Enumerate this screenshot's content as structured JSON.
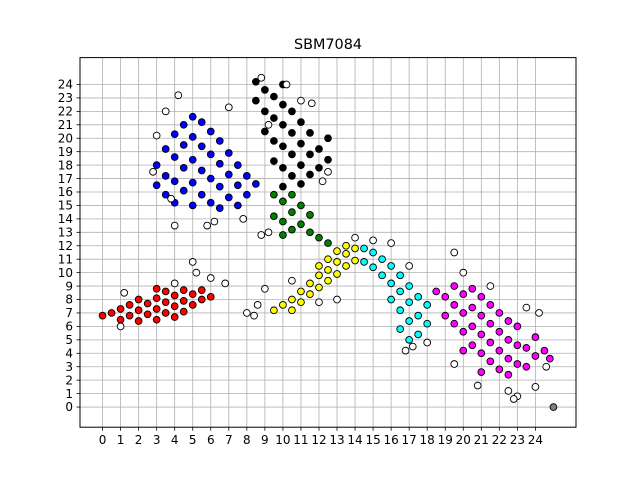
{
  "chart_data": {
    "type": "scatter",
    "title": "SBM7084",
    "xlabel": "",
    "ylabel": "",
    "xlim": [
      -1.25,
      26.25
    ],
    "ylim": [
      -1.5,
      26.0
    ],
    "x_ticks": [
      0,
      1,
      2,
      3,
      4,
      5,
      6,
      7,
      8,
      9,
      10,
      11,
      12,
      13,
      14,
      15,
      16,
      17,
      18,
      19,
      20,
      21,
      22,
      23,
      24
    ],
    "y_ticks": [
      0,
      1,
      2,
      3,
      4,
      5,
      6,
      7,
      8,
      9,
      10,
      11,
      12,
      13,
      14,
      15,
      16,
      17,
      18,
      19,
      20,
      21,
      22,
      23,
      24
    ],
    "grid": true,
    "legend": "none",
    "marker": "circle, black edge",
    "clusters": [
      {
        "color": "#ff0000",
        "points": [
          [
            0.0,
            6.8
          ],
          [
            0.5,
            7.0
          ],
          [
            1.0,
            6.5
          ],
          [
            1.0,
            7.3
          ],
          [
            1.5,
            6.8
          ],
          [
            1.5,
            7.6
          ],
          [
            2.0,
            6.4
          ],
          [
            2.0,
            7.2
          ],
          [
            2.0,
            8.0
          ],
          [
            2.5,
            6.9
          ],
          [
            2.5,
            7.7
          ],
          [
            3.0,
            6.5
          ],
          [
            3.0,
            7.3
          ],
          [
            3.0,
            8.1
          ],
          [
            3.0,
            8.8
          ],
          [
            3.5,
            7.0
          ],
          [
            3.5,
            7.8
          ],
          [
            3.5,
            8.6
          ],
          [
            4.0,
            6.7
          ],
          [
            4.0,
            7.5
          ],
          [
            4.0,
            8.3
          ],
          [
            4.5,
            7.1
          ],
          [
            4.5,
            7.9
          ],
          [
            4.5,
            8.7
          ],
          [
            5.0,
            7.6
          ],
          [
            5.0,
            8.4
          ],
          [
            5.5,
            8.0
          ],
          [
            5.5,
            8.7
          ],
          [
            6.0,
            8.2
          ]
        ]
      },
      {
        "color": "#0000ff",
        "points": [
          [
            3.0,
            18.0
          ],
          [
            3.0,
            16.5
          ],
          [
            3.5,
            19.2
          ],
          [
            3.5,
            17.2
          ],
          [
            3.5,
            15.8
          ],
          [
            4.0,
            20.3
          ],
          [
            4.0,
            18.6
          ],
          [
            4.0,
            16.8
          ],
          [
            4.0,
            15.2
          ],
          [
            4.5,
            21.0
          ],
          [
            4.5,
            19.5
          ],
          [
            4.5,
            17.8
          ],
          [
            4.5,
            16.1
          ],
          [
            5.0,
            21.6
          ],
          [
            5.0,
            20.1
          ],
          [
            5.0,
            18.4
          ],
          [
            5.0,
            16.7
          ],
          [
            5.0,
            15.0
          ],
          [
            5.5,
            21.2
          ],
          [
            5.5,
            19.4
          ],
          [
            5.5,
            17.6
          ],
          [
            5.5,
            15.8
          ],
          [
            6.0,
            20.5
          ],
          [
            6.0,
            18.8
          ],
          [
            6.0,
            17.0
          ],
          [
            6.0,
            15.2
          ],
          [
            6.5,
            19.8
          ],
          [
            6.5,
            18.1
          ],
          [
            6.5,
            16.4
          ],
          [
            6.5,
            14.8
          ],
          [
            7.0,
            18.9
          ],
          [
            7.0,
            17.3
          ],
          [
            7.0,
            15.6
          ],
          [
            7.5,
            18.0
          ],
          [
            7.5,
            16.5
          ],
          [
            7.5,
            15.0
          ],
          [
            8.0,
            17.2
          ],
          [
            8.0,
            15.8
          ],
          [
            8.5,
            16.6
          ]
        ]
      },
      {
        "color": "#000000",
        "points": [
          [
            8.5,
            24.2
          ],
          [
            8.5,
            22.8
          ],
          [
            9.0,
            23.6
          ],
          [
            9.0,
            22.0
          ],
          [
            9.0,
            20.5
          ],
          [
            9.5,
            23.1
          ],
          [
            9.5,
            21.5
          ],
          [
            9.5,
            19.8
          ],
          [
            9.5,
            18.3
          ],
          [
            10.0,
            24.0
          ],
          [
            10.0,
            22.5
          ],
          [
            10.0,
            21.0
          ],
          [
            10.0,
            19.4
          ],
          [
            10.0,
            17.8
          ],
          [
            10.0,
            16.4
          ],
          [
            10.5,
            22.0
          ],
          [
            10.5,
            20.4
          ],
          [
            10.5,
            18.8
          ],
          [
            10.5,
            17.2
          ],
          [
            11.0,
            21.2
          ],
          [
            11.0,
            19.6
          ],
          [
            11.0,
            18.0
          ],
          [
            11.0,
            16.6
          ],
          [
            11.5,
            20.4
          ],
          [
            11.5,
            18.8
          ],
          [
            11.5,
            17.3
          ],
          [
            12.0,
            19.2
          ],
          [
            12.0,
            17.8
          ],
          [
            12.5,
            20.0
          ],
          [
            12.5,
            18.4
          ]
        ]
      },
      {
        "color": "#008000",
        "points": [
          [
            9.5,
            15.8
          ],
          [
            9.5,
            14.2
          ],
          [
            10.0,
            15.3
          ],
          [
            10.0,
            13.8
          ],
          [
            10.0,
            12.8
          ],
          [
            10.5,
            15.8
          ],
          [
            10.5,
            14.5
          ],
          [
            10.5,
            13.2
          ],
          [
            11.0,
            15.0
          ],
          [
            11.0,
            13.6
          ],
          [
            11.5,
            14.3
          ],
          [
            11.5,
            13.0
          ],
          [
            12.0,
            12.6
          ],
          [
            12.5,
            12.2
          ]
        ]
      },
      {
        "color": "#ffff00",
        "points": [
          [
            9.5,
            7.2
          ],
          [
            10.0,
            7.6
          ],
          [
            10.5,
            8.0
          ],
          [
            10.5,
            7.2
          ],
          [
            11.0,
            8.6
          ],
          [
            11.0,
            7.8
          ],
          [
            11.5,
            9.2
          ],
          [
            11.5,
            8.4
          ],
          [
            12.0,
            9.8
          ],
          [
            12.0,
            8.9
          ],
          [
            12.0,
            10.5
          ],
          [
            12.5,
            10.2
          ],
          [
            12.5,
            9.4
          ],
          [
            12.5,
            11.0
          ],
          [
            13.0,
            10.8
          ],
          [
            13.0,
            9.9
          ],
          [
            13.0,
            11.6
          ],
          [
            13.5,
            11.4
          ],
          [
            13.5,
            10.5
          ],
          [
            13.5,
            12.0
          ],
          [
            14.0,
            11.8
          ],
          [
            14.0,
            10.9
          ]
        ]
      },
      {
        "color": "#00ffff",
        "points": [
          [
            14.5,
            11.8
          ],
          [
            14.5,
            10.8
          ],
          [
            15.0,
            11.5
          ],
          [
            15.0,
            10.4
          ],
          [
            15.5,
            11.0
          ],
          [
            15.5,
            9.8
          ],
          [
            16.0,
            10.5
          ],
          [
            16.0,
            9.2
          ],
          [
            16.0,
            8.0
          ],
          [
            16.5,
            9.8
          ],
          [
            16.5,
            8.6
          ],
          [
            16.5,
            7.2
          ],
          [
            16.5,
            5.8
          ],
          [
            17.0,
            9.0
          ],
          [
            17.0,
            7.8
          ],
          [
            17.0,
            6.4
          ],
          [
            17.0,
            5.0
          ],
          [
            17.5,
            8.2
          ],
          [
            17.5,
            6.8
          ],
          [
            17.5,
            5.4
          ],
          [
            18.0,
            7.6
          ],
          [
            18.0,
            6.2
          ]
        ]
      },
      {
        "color": "#ff00ff",
        "points": [
          [
            18.5,
            8.6
          ],
          [
            19.0,
            8.2
          ],
          [
            19.0,
            6.8
          ],
          [
            19.5,
            9.0
          ],
          [
            19.5,
            7.6
          ],
          [
            19.5,
            6.2
          ],
          [
            20.0,
            8.4
          ],
          [
            20.0,
            7.0
          ],
          [
            20.0,
            5.6
          ],
          [
            20.0,
            4.2
          ],
          [
            20.5,
            8.8
          ],
          [
            20.5,
            7.4
          ],
          [
            20.5,
            6.0
          ],
          [
            20.5,
            4.6
          ],
          [
            21.0,
            8.2
          ],
          [
            21.0,
            6.8
          ],
          [
            21.0,
            5.4
          ],
          [
            21.0,
            4.0
          ],
          [
            21.0,
            2.6
          ],
          [
            21.5,
            7.6
          ],
          [
            21.5,
            6.2
          ],
          [
            21.5,
            4.8
          ],
          [
            21.5,
            3.4
          ],
          [
            22.0,
            7.0
          ],
          [
            22.0,
            5.6
          ],
          [
            22.0,
            4.2
          ],
          [
            22.0,
            2.8
          ],
          [
            22.5,
            6.4
          ],
          [
            22.5,
            5.0
          ],
          [
            22.5,
            3.6
          ],
          [
            22.5,
            2.4
          ],
          [
            23.0,
            6.0
          ],
          [
            23.0,
            4.6
          ],
          [
            23.0,
            3.2
          ],
          [
            23.5,
            4.4
          ],
          [
            23.5,
            3.0
          ],
          [
            24.0,
            5.2
          ],
          [
            24.0,
            3.8
          ],
          [
            24.5,
            4.2
          ],
          [
            24.8,
            3.6
          ]
        ]
      },
      {
        "color": "#ffffff",
        "points": [
          [
            1.0,
            6.0
          ],
          [
            1.2,
            8.5
          ],
          [
            5.0,
            10.8
          ],
          [
            5.2,
            10.0
          ],
          [
            6.0,
            9.6
          ],
          [
            6.8,
            9.2
          ],
          [
            4.0,
            9.2
          ],
          [
            3.5,
            22.0
          ],
          [
            4.2,
            23.2
          ],
          [
            3.8,
            15.5
          ],
          [
            4.0,
            13.5
          ],
          [
            3.0,
            20.2
          ],
          [
            2.8,
            17.5
          ],
          [
            7.0,
            22.3
          ],
          [
            5.8,
            13.5
          ],
          [
            6.2,
            13.8
          ],
          [
            7.8,
            14.0
          ],
          [
            9.2,
            13.0
          ],
          [
            8.8,
            12.8
          ],
          [
            8.8,
            24.5
          ],
          [
            9.2,
            21.0
          ],
          [
            10.2,
            24.0
          ],
          [
            11.0,
            22.8
          ],
          [
            11.6,
            22.6
          ],
          [
            12.2,
            16.8
          ],
          [
            12.5,
            17.5
          ],
          [
            8.6,
            7.6
          ],
          [
            9.0,
            8.8
          ],
          [
            10.5,
            9.4
          ],
          [
            8.0,
            7.0
          ],
          [
            8.4,
            6.8
          ],
          [
            12.0,
            7.8
          ],
          [
            13.0,
            8.0
          ],
          [
            14.0,
            12.6
          ],
          [
            15.0,
            12.4
          ],
          [
            16.0,
            12.2
          ],
          [
            17.0,
            10.5
          ],
          [
            17.2,
            4.5
          ],
          [
            18.0,
            4.8
          ],
          [
            16.8,
            4.2
          ],
          [
            19.5,
            11.5
          ],
          [
            20.0,
            10.0
          ],
          [
            19.5,
            3.2
          ],
          [
            20.8,
            1.6
          ],
          [
            22.5,
            1.2
          ],
          [
            23.0,
            0.8
          ],
          [
            22.8,
            0.6
          ],
          [
            24.0,
            1.5
          ],
          [
            23.5,
            7.4
          ],
          [
            24.2,
            7.0
          ],
          [
            24.6,
            3.0
          ],
          [
            21.5,
            9.0
          ]
        ]
      },
      {
        "color": "#808080",
        "points": [
          [
            25.0,
            0.0
          ]
        ]
      }
    ]
  }
}
